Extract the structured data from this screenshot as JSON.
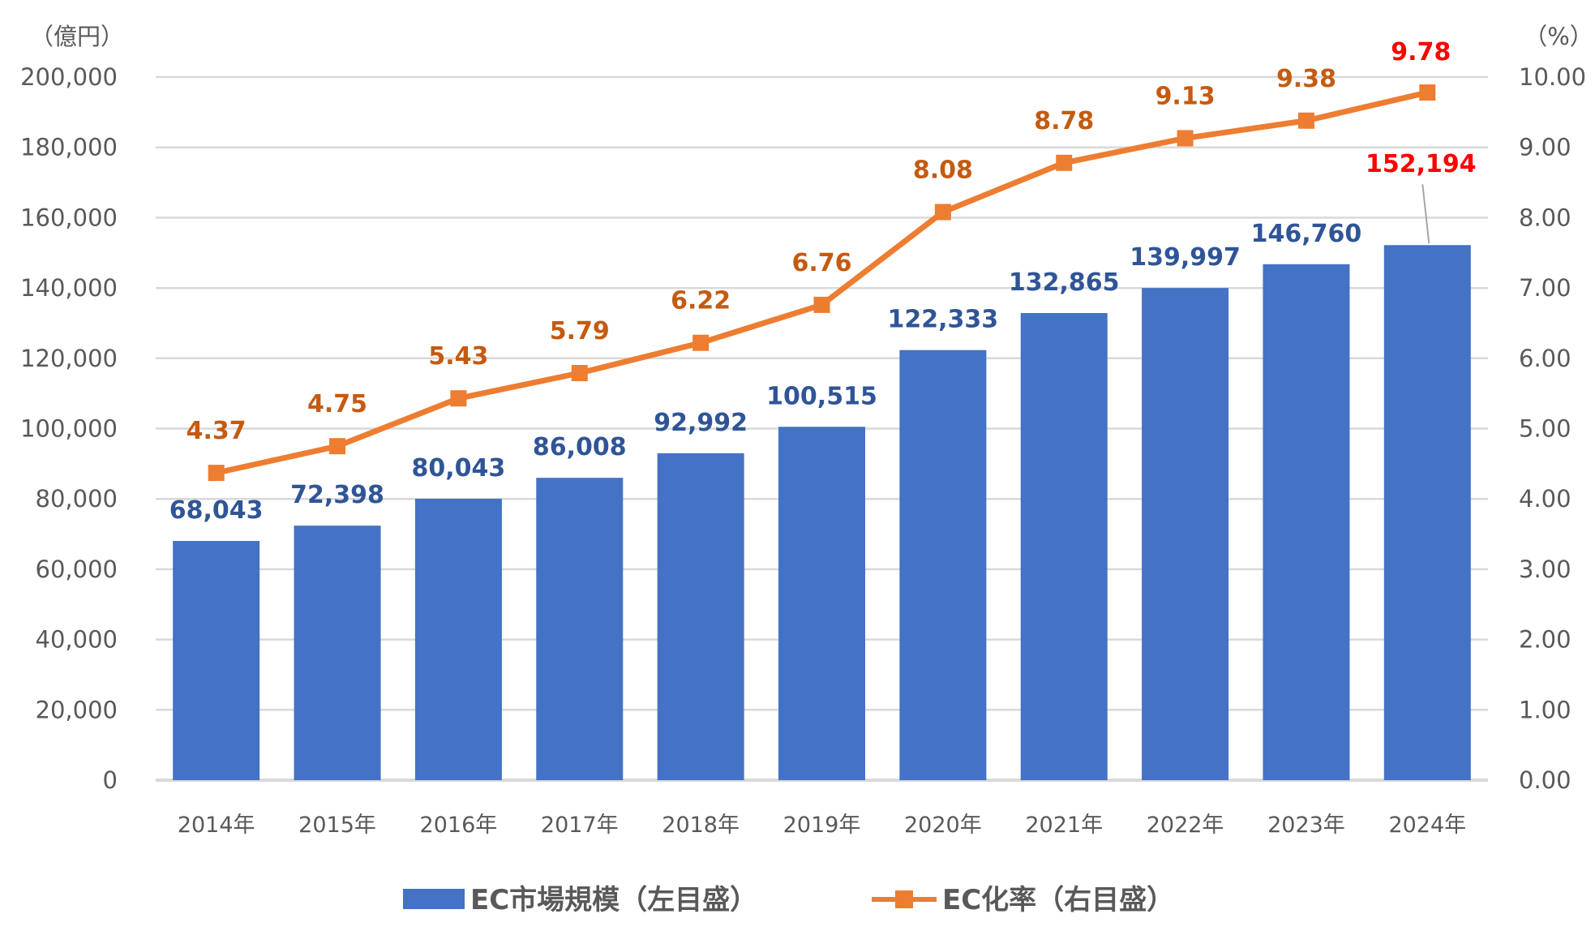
{
  "chart_data": {
    "type": "bar+line",
    "categories": [
      "2014年",
      "2015年",
      "2016年",
      "2017年",
      "2018年",
      "2019年",
      "2020年",
      "2021年",
      "2022年",
      "2023年",
      "2024年"
    ],
    "left_axis": {
      "unit_label": "（億円）",
      "ylim": [
        0,
        200000
      ],
      "ticks": [
        "0",
        "20,000",
        "40,000",
        "60,000",
        "80,000",
        "100,000",
        "120,000",
        "140,000",
        "160,000",
        "180,000",
        "200,000"
      ]
    },
    "right_axis": {
      "unit_label": "（%）",
      "ylim": [
        0,
        10
      ],
      "ticks": [
        "0.00",
        "1.00",
        "2.00",
        "3.00",
        "4.00",
        "5.00",
        "6.00",
        "7.00",
        "8.00",
        "9.00",
        "10.00"
      ]
    },
    "grid": true,
    "legend_position": "bottom",
    "series": [
      {
        "name": "EC市場規模（左目盛）",
        "type": "bar",
        "axis": "left",
        "color": "#4472C4",
        "label_color": "#2F5597",
        "values": [
          68043,
          72398,
          80043,
          86008,
          92992,
          100515,
          122333,
          132865,
          139997,
          146760,
          152194
        ],
        "labels": [
          "68,043",
          "72,398",
          "80,043",
          "86,008",
          "92,992",
          "100,515",
          "122,333",
          "132,865",
          "139,997",
          "146,760",
          "152,194"
        ]
      },
      {
        "name": "EC化率（右目盛）",
        "type": "line",
        "axis": "right",
        "color": "#ED7D31",
        "label_color": "#C55A11",
        "values": [
          4.37,
          4.75,
          5.43,
          5.79,
          6.22,
          6.76,
          8.08,
          8.78,
          9.13,
          9.38,
          9.78
        ],
        "labels": [
          "4.37",
          "4.75",
          "5.43",
          "5.79",
          "6.22",
          "6.76",
          "8.08",
          "8.78",
          "9.13",
          "9.38",
          "9.78"
        ]
      }
    ],
    "highlight_color": "#FF0000"
  }
}
